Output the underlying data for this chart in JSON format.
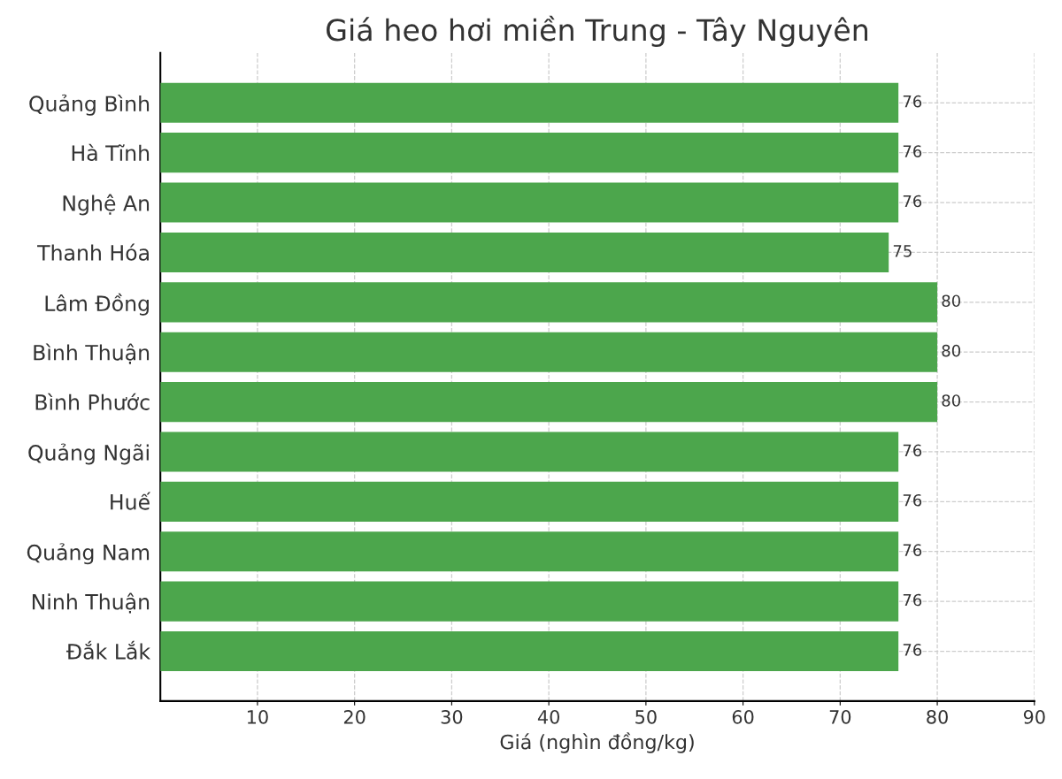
{
  "chart_data": {
    "type": "bar",
    "orientation": "horizontal",
    "title": "Giá heo hơi miền Trung - Tây Nguyên",
    "xlabel": "Giá (nghìn đồng/kg)",
    "categories": [
      "Quảng Bình",
      "Hà Tĩnh",
      "Nghệ An",
      "Thanh Hóa",
      "Lâm Đồng",
      "Bình Thuận",
      "Bình Phước",
      "Quảng Ngãi",
      "Huế",
      "Quảng Nam",
      "Ninh Thuận",
      "Đắk Lắk"
    ],
    "values": [
      76,
      76,
      76,
      75,
      80,
      80,
      80,
      76,
      76,
      76,
      76,
      76
    ],
    "color": "#4ca64c",
    "data_labels": true,
    "grid": true,
    "xlim": [
      0,
      90
    ],
    "xticks": [
      10,
      20,
      30,
      40,
      50,
      60,
      70,
      80,
      90
    ]
  }
}
